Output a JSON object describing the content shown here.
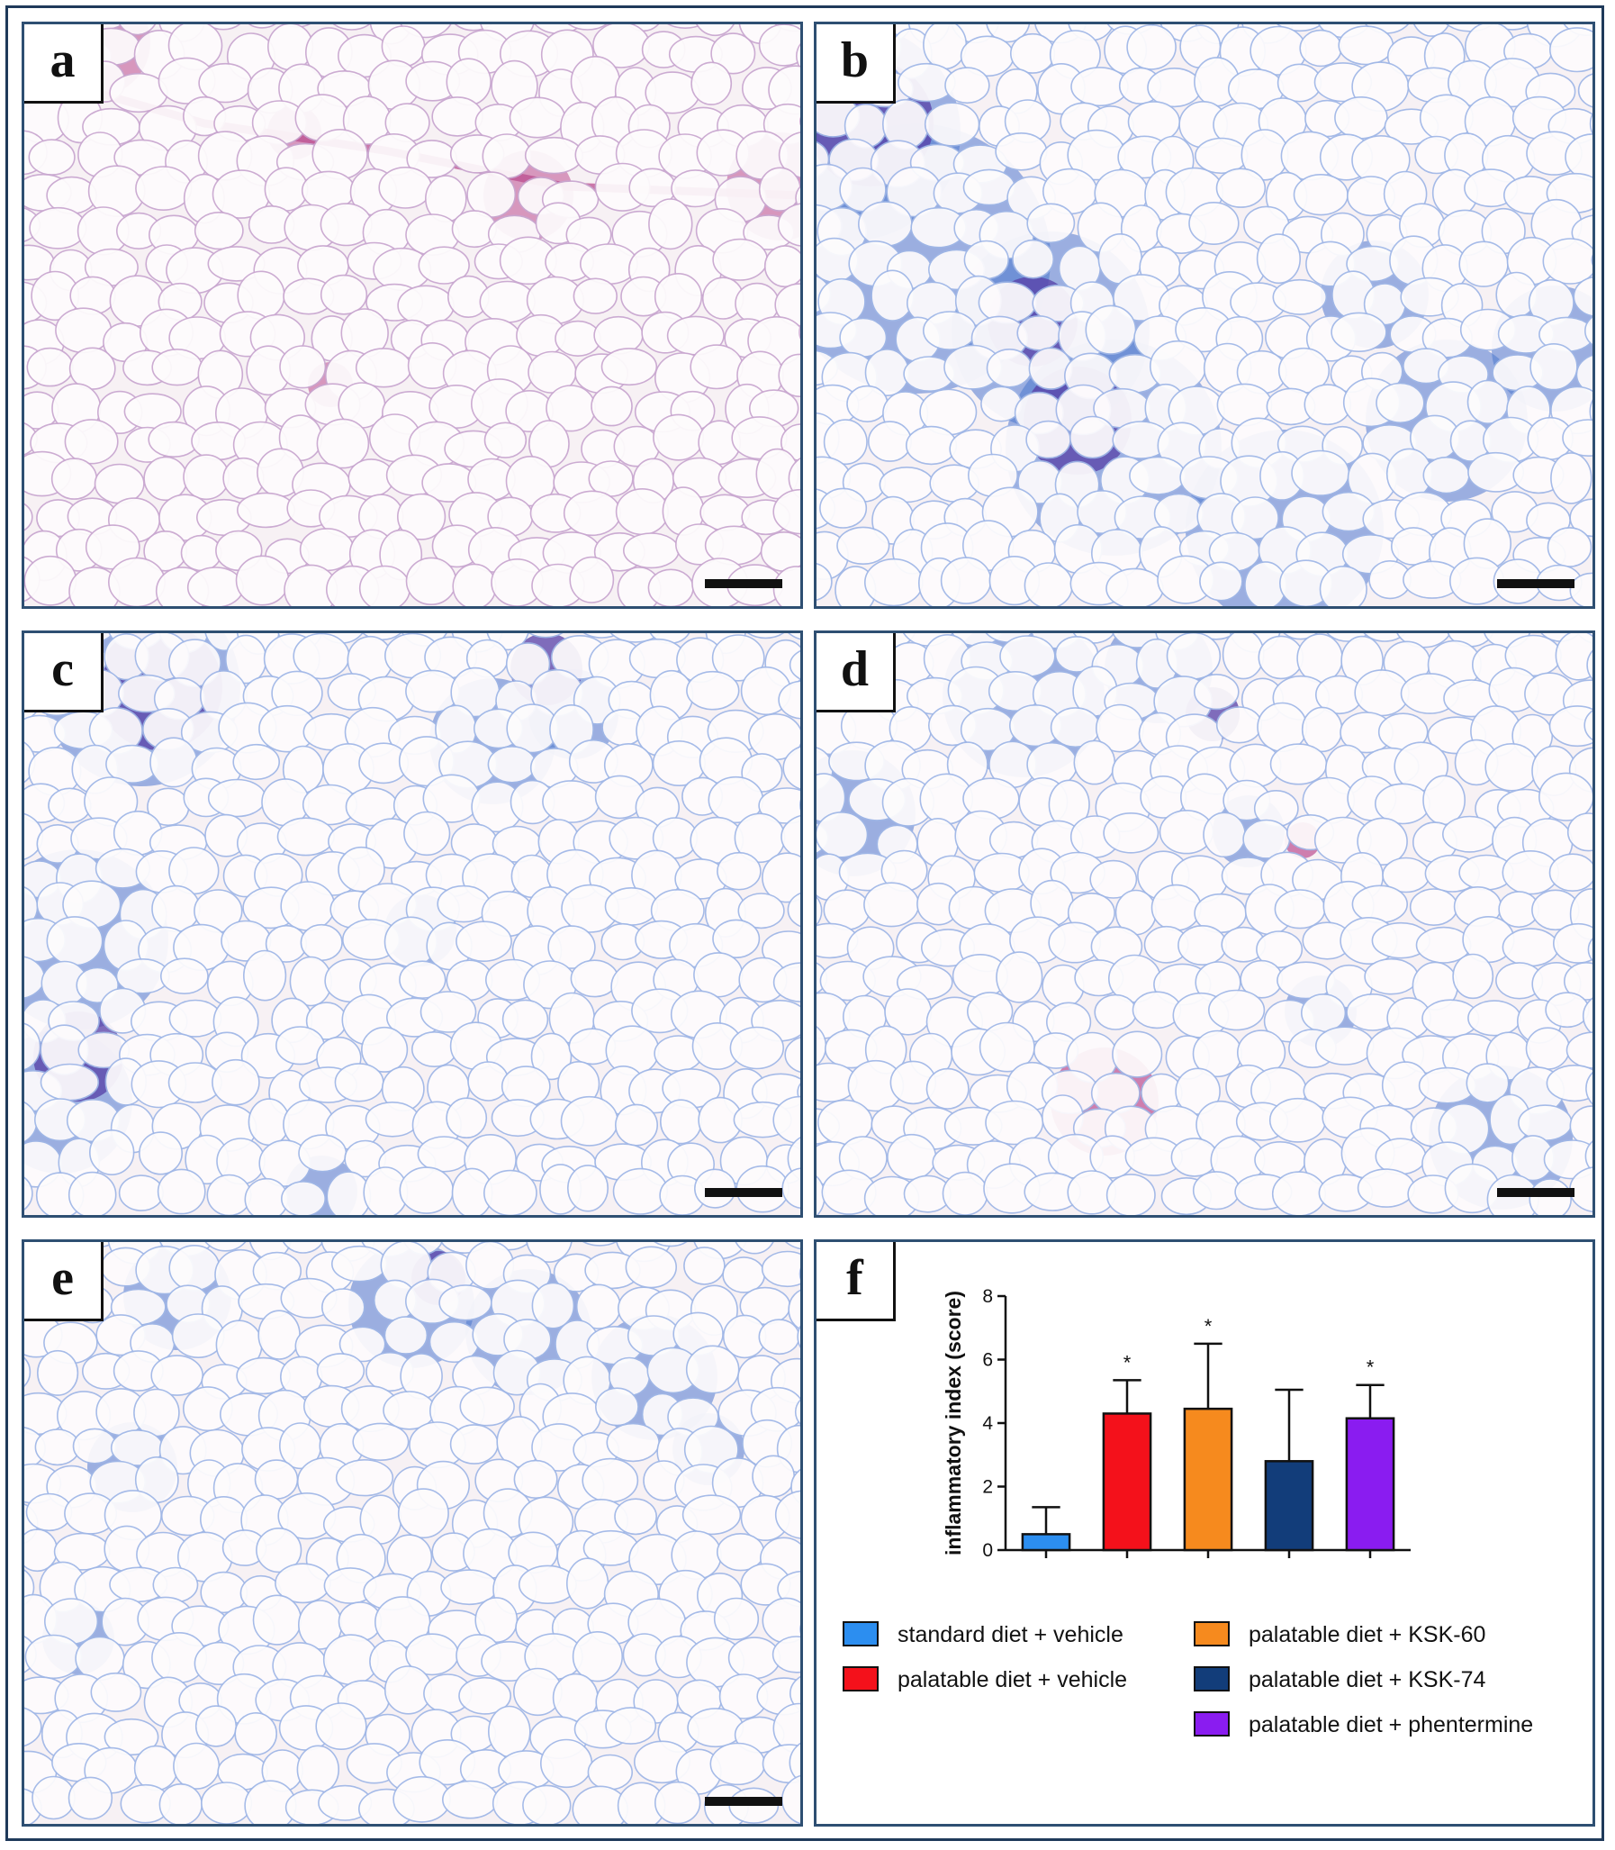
{
  "panels": {
    "a": {
      "label": "a",
      "stain": "pink"
    },
    "b": {
      "label": "b",
      "stain": "blue-dense"
    },
    "c": {
      "label": "c",
      "stain": "blue"
    },
    "d": {
      "label": "d",
      "stain": "blue-light"
    },
    "e": {
      "label": "e",
      "stain": "blue-top"
    },
    "f": {
      "label": "f"
    }
  },
  "colors": {
    "background_tissue": "#f7f1f4",
    "pink_stain": "#b0307e",
    "blue_stain": "#2f63c8",
    "dark_blue_stain": "#3a1f9a",
    "frame": "#2e4f72"
  },
  "chart_data": {
    "type": "bar",
    "ylabel": "inflammatory index (score)",
    "ylim": [
      0,
      8
    ],
    "yticks": [
      0,
      2,
      4,
      6,
      8
    ],
    "series": [
      {
        "name": "standard diet + vehicle",
        "value": 0.5,
        "error": 0.85,
        "color": "#2c8ef0",
        "significant": false
      },
      {
        "name": "palatable diet + vehicle",
        "value": 4.3,
        "error": 1.05,
        "color": "#f4111b",
        "significant": true
      },
      {
        "name": "palatable diet + KSK-60",
        "value": 4.45,
        "error": 2.05,
        "color": "#f68a1e",
        "significant": true
      },
      {
        "name": "palatable diet + KSK-74",
        "value": 2.8,
        "error": 2.25,
        "color": "#123d7a",
        "significant": false
      },
      {
        "name": "palatable diet + phentermine",
        "value": 4.15,
        "error": 1.05,
        "color": "#8a1cf0",
        "significant": true
      }
    ],
    "significance_marker": "*",
    "legend": "bottom, two columns"
  }
}
